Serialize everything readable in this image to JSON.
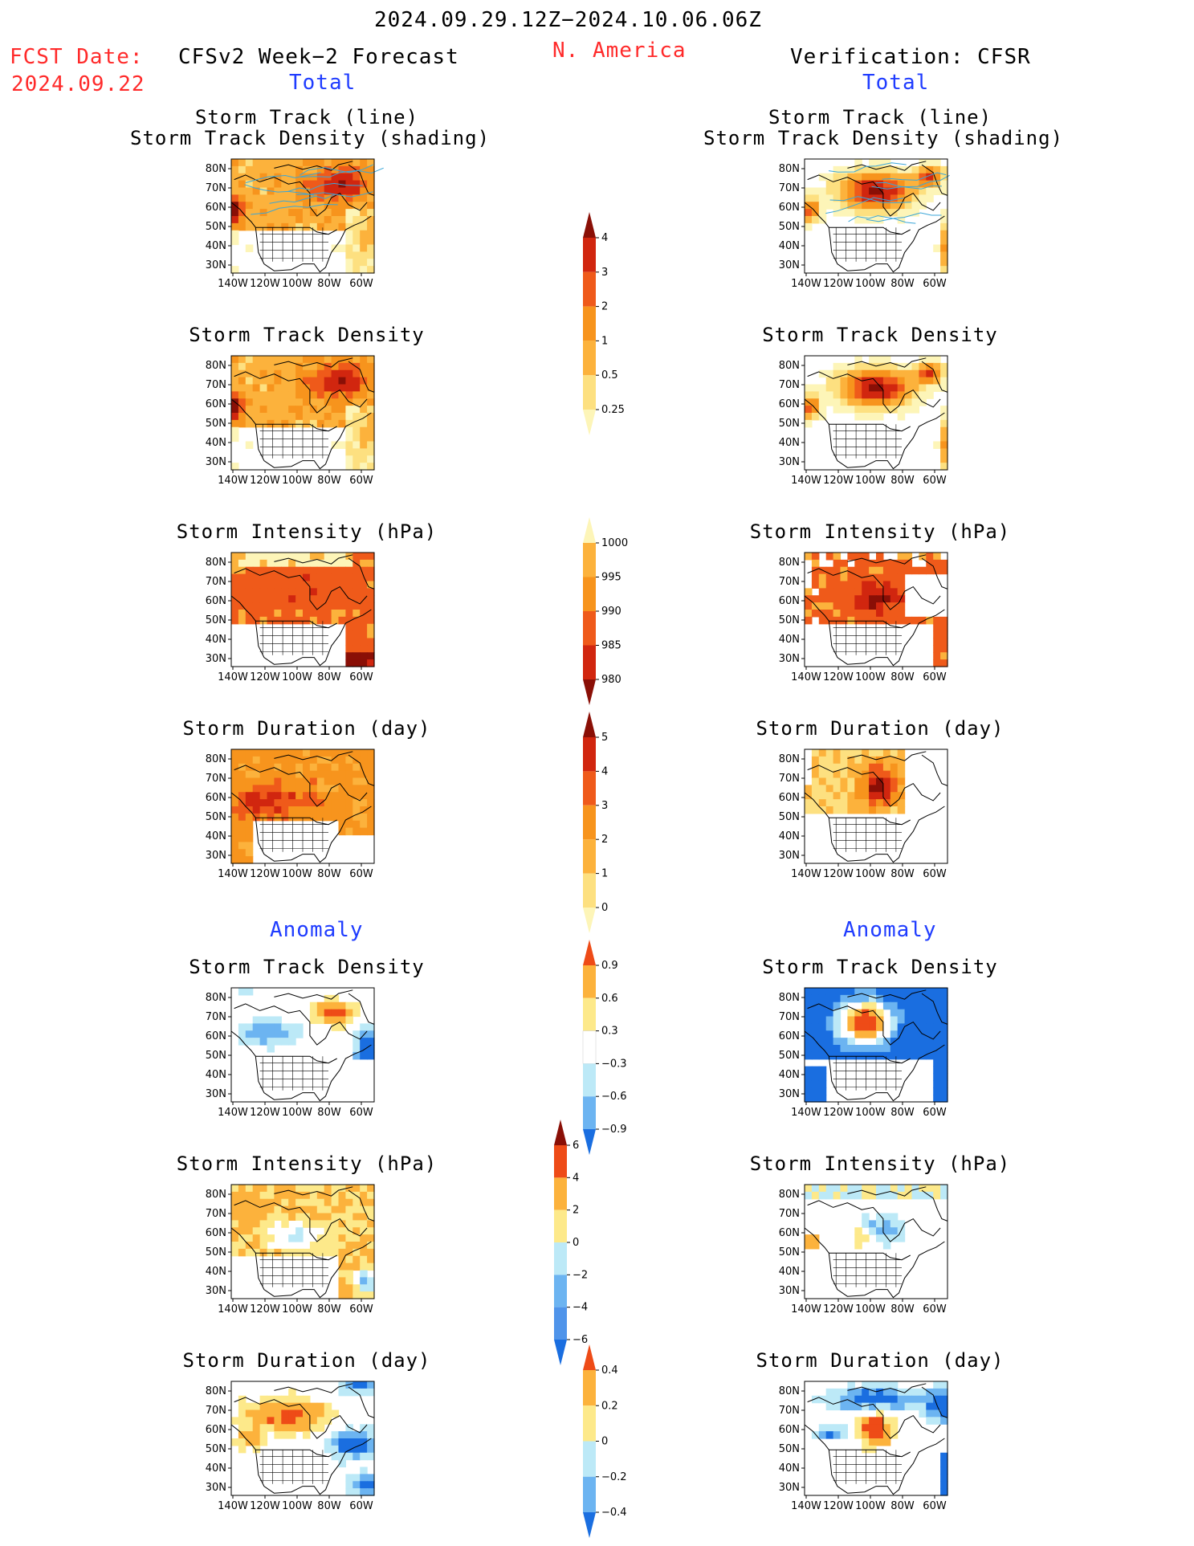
{
  "header": {
    "date_range": "2024.09.29.12Z−2024.10.06.06Z",
    "fcst_date_label": "FCST Date:",
    "fcst_date_value": "2024.09.22",
    "forecast_title": "CFSv2 Week−2 Forecast",
    "region": "N. America",
    "verification_title": "Verification: CFSR"
  },
  "section_labels": {
    "total_left": "Total",
    "total_right": "Total",
    "anomaly_left": "Anomaly",
    "anomaly_right": "Anomaly"
  },
  "panel_titles": {
    "track_line": "Storm Track (line)",
    "track_density_shading": "Storm Track Density (shading)",
    "track_density": "Storm Track Density",
    "intensity": "Storm Intensity (hPa)",
    "duration": "Storm Duration (day)"
  },
  "axes": {
    "lat_labels": [
      "80N",
      "70N",
      "60N",
      "50N",
      "40N",
      "30N"
    ],
    "lon_labels": [
      "140W",
      "120W",
      "100W",
      "80W",
      "60W"
    ]
  },
  "colors": {
    "warm": [
      "#ffffff",
      "#fdf5b8",
      "#fde080",
      "#fcb23c",
      "#f7941d",
      "#ef5a1a",
      "#d1260f",
      "#8a0f06"
    ],
    "anom_pos": [
      "#fde98a",
      "#fcb23c",
      "#ee4b17"
    ],
    "anom_neg": [
      "#bce9f7",
      "#6cb4f1",
      "#1a6ee0"
    ],
    "intensity_low_first": [
      "#fdf5b8",
      "#fcb23c",
      "#ef5a1a",
      "#d1260f",
      "#8a0f06"
    ]
  },
  "colorbars": {
    "density": [
      "4",
      "3",
      "2",
      "1",
      "0.5",
      "0.25"
    ],
    "intensity": [
      "1000",
      "995",
      "990",
      "985",
      "980"
    ],
    "duration": [
      "5",
      "4",
      "3",
      "2",
      "1",
      "0"
    ],
    "density_anomaly": [
      "0.9",
      "0.6",
      "0.3",
      "−0.3",
      "−0.6",
      "−0.9"
    ],
    "intensity_anomaly": [
      "6",
      "4",
      "2",
      "0",
      "−2",
      "−4",
      "−6"
    ],
    "duration_anomaly": [
      "0.4",
      "0.2",
      "0",
      "−0.2",
      "−0.4"
    ]
  }
}
